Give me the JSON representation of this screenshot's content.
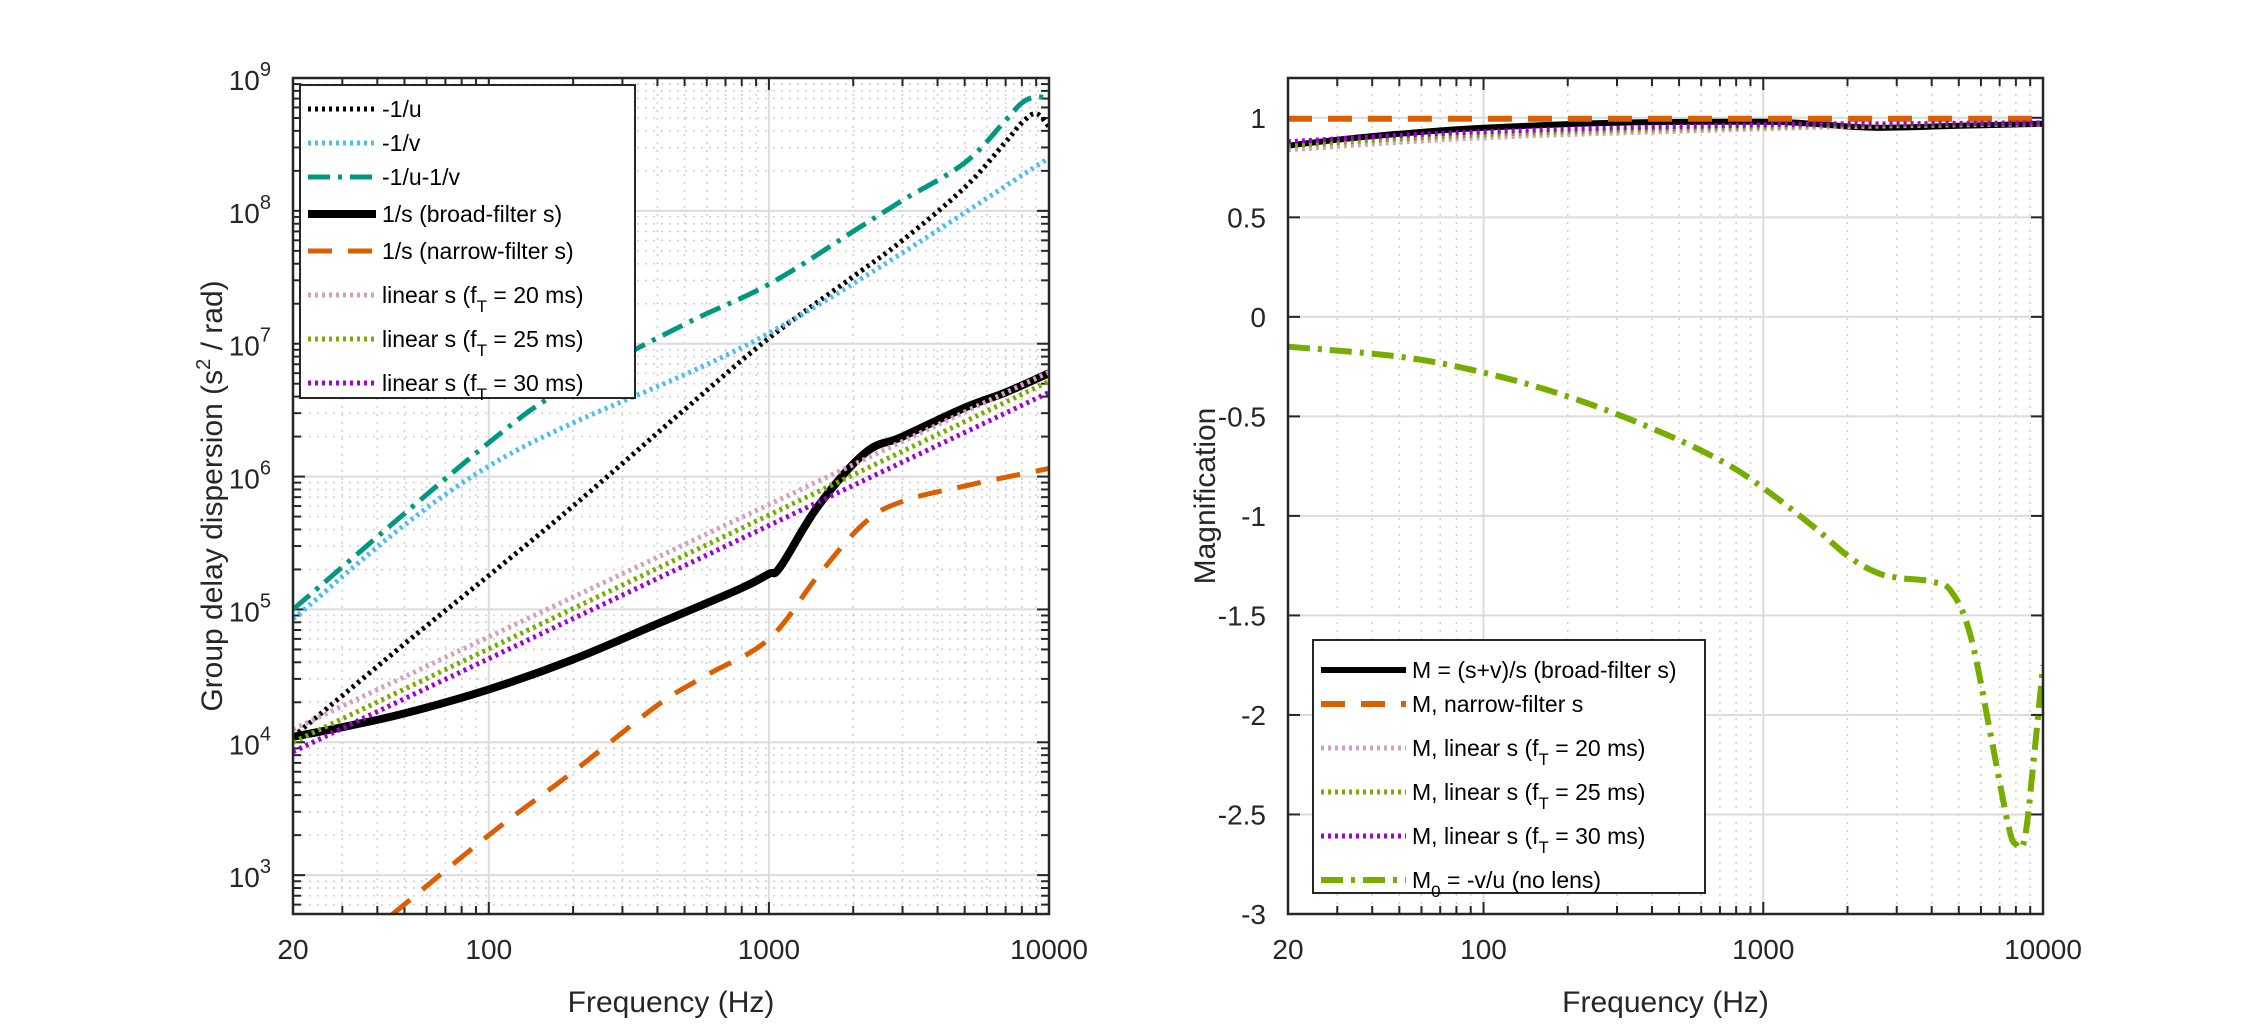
{
  "chart_data": [
    {
      "type": "line",
      "title": "",
      "xlabel": "Frequency (Hz)",
      "ylabel": "Group delay dispersion (s^2 / rad)",
      "ylabel_parts": {
        "pre": "Group delay dispersion (s",
        "sup": "2",
        "post": " / rad)"
      },
      "xscale": "log",
      "yscale": "log",
      "xlim": [
        20,
        10000
      ],
      "ylim": [
        510,
        1000000000
      ],
      "xticks": [
        20,
        100,
        1000,
        10000
      ],
      "xtick_labels": [
        "20",
        "100",
        "1000",
        "10000"
      ],
      "yticks": [
        1000,
        10000,
        100000,
        1000000,
        10000000,
        100000000,
        1000000000
      ],
      "ytick_labels": [
        {
          "base": "10",
          "exp": "3"
        },
        {
          "base": "10",
          "exp": "4"
        },
        {
          "base": "10",
          "exp": "5"
        },
        {
          "base": "10",
          "exp": "6"
        },
        {
          "base": "10",
          "exp": "7"
        },
        {
          "base": "10",
          "exp": "8"
        },
        {
          "base": "10",
          "exp": "9"
        }
      ],
      "grid": true,
      "legend_position": "top-left",
      "series": [
        {
          "name": "-1/u",
          "label": "-1/u",
          "color": "#000000",
          "style": "dotted",
          "width": 5,
          "x": [
            20,
            50,
            100,
            200,
            500,
            1000,
            2000,
            3000,
            5000,
            7000,
            8000,
            9000,
            10000
          ],
          "y": [
            11000,
            55000,
            180000,
            600000,
            3200000,
            11000000,
            32000000,
            60000000,
            150000000,
            330000000,
            460000000,
            540000000,
            430000000
          ]
        },
        {
          "name": "-1/v",
          "label": "-1/v",
          "color": "#4DBEEE",
          "style": "dotted",
          "width": 5,
          "x": [
            20,
            100,
            1000,
            10000
          ],
          "y": [
            85000,
            1200000,
            12000000,
            250000000
          ]
        },
        {
          "name": "-1/u-1/v",
          "label": "-1/u-1/v",
          "color": "#009980",
          "style": "dashdot",
          "width": 5,
          "x": [
            20,
            100,
            200,
            500,
            1000,
            2000,
            3000,
            5000,
            7000,
            8000,
            9000,
            10000
          ],
          "y": [
            100000,
            1800000,
            5000000,
            14000000,
            28000000,
            70000000,
            120000000,
            230000000,
            480000000,
            650000000,
            720000000,
            700000000
          ]
        },
        {
          "name": "1/s (broad-filter s)",
          "label": "1/s (broad-filter s)",
          "color": "#000000",
          "style": "solid",
          "width": 8,
          "x": [
            20,
            30,
            50,
            100,
            200,
            400,
            500,
            800,
            1000,
            1100,
            1500,
            2200,
            3000,
            5000,
            7000,
            10000
          ],
          "y": [
            11000,
            13000,
            16500,
            25000,
            42000,
            78000,
            95000,
            145000,
            185000,
            210000,
            600000,
            1500000,
            2000000,
            3300000,
            4300000,
            6000000
          ]
        },
        {
          "name": "1/s (narrow-filter s)",
          "label": "1/s (narrow-filter s)",
          "color": "#D95F02",
          "style": "dashed",
          "width": 5,
          "x": [
            45,
            100,
            200,
            400,
            600,
            1000,
            1500,
            2200,
            3000,
            5000,
            10000
          ],
          "y": [
            500,
            2000,
            6000,
            19000,
            32000,
            60000,
            180000,
            450000,
            650000,
            850000,
            1150000
          ]
        },
        {
          "name": "linear s (fT = 20 ms)",
          "label": {
            "pre": "linear s (f",
            "sub": "T",
            "post": " = 20 ms)"
          },
          "color": "#D4A0C0",
          "style": "dotted",
          "width": 5,
          "x": [
            20,
            10000
          ],
          "y": [
            12500,
            6100000
          ]
        },
        {
          "name": "linear s (fT = 25 ms)",
          "label": {
            "pre": "linear s (f",
            "sub": "T",
            "post": " = 25 ms)"
          },
          "color": "#77AC00",
          "style": "dotted",
          "width": 5,
          "x": [
            20,
            10000
          ],
          "y": [
            10000,
            5200000
          ]
        },
        {
          "name": "linear s (fT = 30 ms)",
          "label": {
            "pre": "linear s (f",
            "sub": "T",
            "post": " = 30 ms)"
          },
          "color": "#A100D6",
          "style": "dotted",
          "width": 5,
          "x": [
            20,
            10000
          ],
          "y": [
            8500,
            4300000
          ]
        }
      ]
    },
    {
      "type": "line",
      "title": "",
      "xlabel": "Frequency (Hz)",
      "ylabel": "Magnification",
      "xscale": "log",
      "yscale": "linear",
      "xlim": [
        20,
        10000
      ],
      "ylim": [
        -3,
        1.2
      ],
      "xticks": [
        20,
        100,
        1000,
        10000
      ],
      "xtick_labels": [
        "20",
        "100",
        "1000",
        "10000"
      ],
      "yticks": [
        -3,
        -2.5,
        -2,
        -1.5,
        -1,
        -0.5,
        0,
        0.5,
        1
      ],
      "ytick_labels": [
        "-3",
        "-2.5",
        "-2",
        "-1.5",
        "-1",
        "-0.5",
        "0",
        "0.5",
        "1"
      ],
      "grid": true,
      "legend_position": "bottom-left",
      "series": [
        {
          "name": "M = (s+v)/s (broad-filter s)",
          "label": {
            "pre": "M = (s+v)/s (broad-filter s)",
            "sub": "",
            "post": ""
          },
          "color": "#000000",
          "style": "solid",
          "width": 6,
          "x": [
            20,
            30,
            50,
            100,
            300,
            1000,
            1500,
            2500,
            5000,
            10000
          ],
          "y": [
            0.86,
            0.89,
            0.92,
            0.95,
            0.975,
            0.98,
            0.97,
            0.95,
            0.96,
            0.97
          ]
        },
        {
          "name": "M, narrow-filter s",
          "label": {
            "pre": "M, narrow-filter s",
            "sub": "",
            "post": ""
          },
          "color": "#D95F02",
          "style": "dashed",
          "width": 6,
          "x": [
            20,
            10000
          ],
          "y": [
            0.995,
            0.995
          ]
        },
        {
          "name": "M, linear s (fT = 20 ms)",
          "label": {
            "pre": "M, linear s (f",
            "sub": "T",
            "post": " = 20 ms)"
          },
          "color": "#D4A0C0",
          "style": "dotted",
          "width": 5,
          "x": [
            20,
            100,
            1000,
            3000,
            10000
          ],
          "y": [
            0.84,
            0.9,
            0.945,
            0.96,
            0.97
          ]
        },
        {
          "name": "M, linear s (fT = 25 ms)",
          "label": {
            "pre": "M, linear s (f",
            "sub": "T",
            "post": " = 25 ms)"
          },
          "color": "#77AC00",
          "style": "dotted",
          "width": 5,
          "x": [
            20,
            100,
            1000,
            3000,
            10000
          ],
          "y": [
            0.86,
            0.915,
            0.955,
            0.965,
            0.972
          ]
        },
        {
          "name": "M, linear s (fT = 30 ms)",
          "label": {
            "pre": "M, linear s (f",
            "sub": "T",
            "post": " = 30 ms)"
          },
          "color": "#A100D6",
          "style": "dotted",
          "width": 5,
          "x": [
            20,
            100,
            1000,
            3000,
            10000
          ],
          "y": [
            0.88,
            0.93,
            0.965,
            0.97,
            0.975
          ]
        },
        {
          "name": "M0 = -v/u (no lens)",
          "label": {
            "pre": "M",
            "sub": "0",
            "post": " = -v/u (no lens)"
          },
          "color": "#77AC00",
          "style": "dashdot",
          "width": 6,
          "x": [
            20,
            50,
            100,
            200,
            400,
            700,
            1000,
            1500,
            2000,
            2500,
            3000,
            4000,
            4700,
            5500,
            6500,
            7500,
            8000,
            8600,
            9300,
            10000
          ],
          "y": [
            -0.15,
            -0.2,
            -0.28,
            -0.4,
            -0.56,
            -0.72,
            -0.86,
            -1.05,
            -1.2,
            -1.28,
            -1.31,
            -1.33,
            -1.38,
            -1.6,
            -2.1,
            -2.55,
            -2.65,
            -2.62,
            -2.2,
            -1.75
          ]
        }
      ]
    }
  ]
}
